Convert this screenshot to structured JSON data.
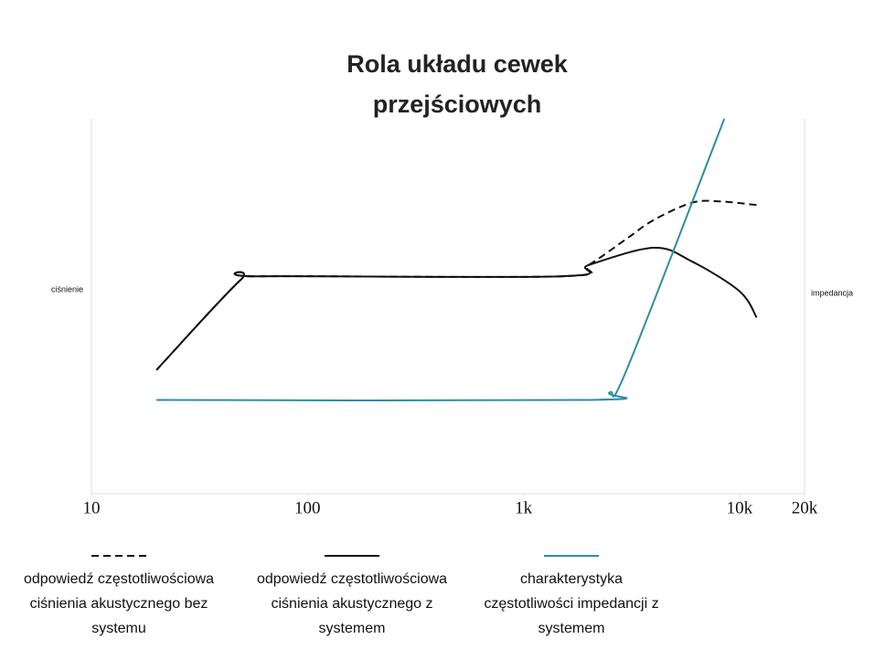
{
  "chart_data": {
    "type": "line",
    "title": "Rola układu cewek przejściowych",
    "y_label": "ciśnienie",
    "y2_label": "impedancja",
    "x_log": true,
    "xlim": [
      10,
      20000
    ],
    "xticks": [
      10,
      100,
      {
        "value": 1000,
        "label": "1k"
      },
      {
        "value": 10000,
        "label": "10k"
      },
      {
        "value": 20000,
        "label": "20k"
      }
    ],
    "ylim": [
      0,
      100
    ],
    "grid": false,
    "series": [
      {
        "name": "odpowiedź częstotliwościowa ciśnienia akustycznego bez systemu",
        "color": "#111111",
        "dash": true,
        "x": [
          20,
          49,
          60,
          1500,
          2000,
          3000,
          4000,
          6000,
          8000,
          12000
        ],
        "values": [
          33,
          57,
          58,
          58,
          61,
          68,
          73,
          77.6,
          78,
          77
        ]
      },
      {
        "name": "odpowiedź częstotliwościowa ciśnienia akustycznego z systemem",
        "color": "#111111",
        "dash": false,
        "x": [
          20,
          49,
          60,
          1500,
          2000,
          4000,
          6000,
          10000,
          12000
        ],
        "values": [
          33,
          57,
          58,
          58,
          61,
          65.6,
          62,
          54,
          47
        ]
      },
      {
        "name": "charakterystyka częstotliwości impedancji z systemem",
        "color": "#2e8ca8",
        "dash": false,
        "x": [
          20,
          2000,
          2500,
          3000,
          8500
        ],
        "values": [
          25,
          25,
          27,
          33,
          100
        ]
      }
    ]
  }
}
